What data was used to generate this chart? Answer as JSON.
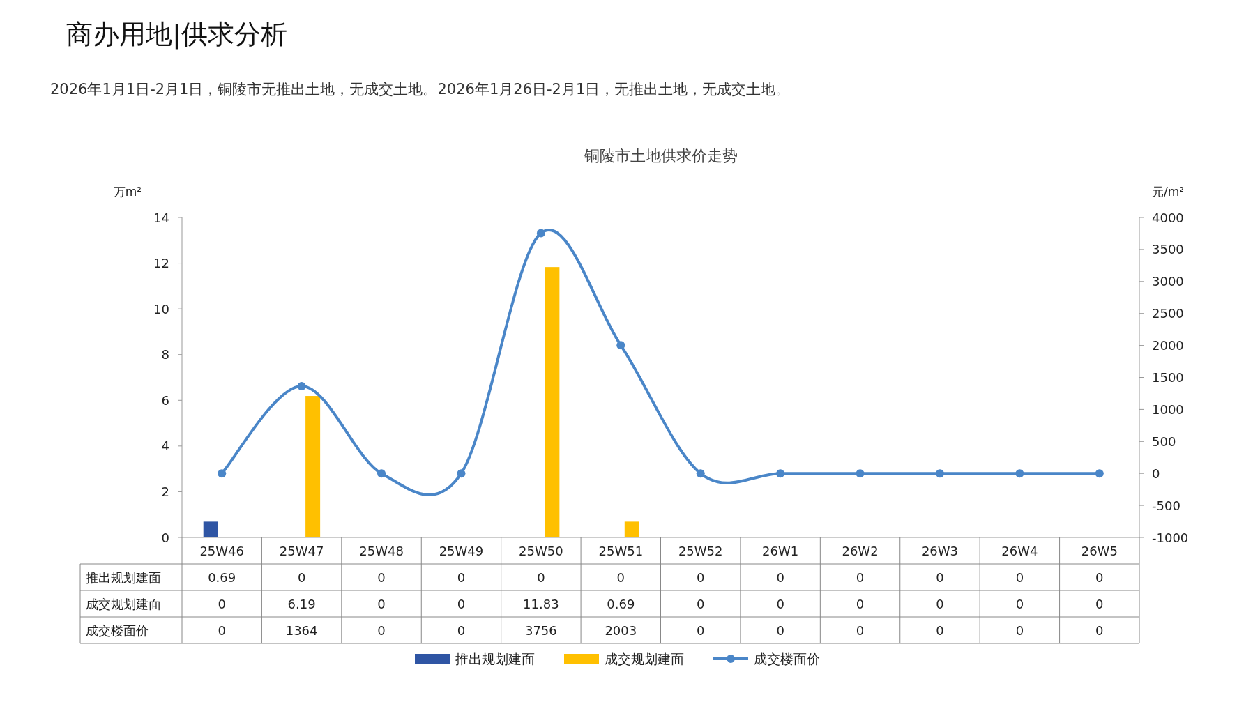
{
  "chart_data": {
    "type": "bar",
    "title": "铜陵市土地供求价走势",
    "annotations": [
      "商办用地|供求分析",
      "2026年1月1日-2月1日，铜陵市无推出土地，无成交土地。2026年1月26日-2月1日，无推出土地，无成交土地。"
    ],
    "ylabel": "万m²",
    "y2label": "元/m²",
    "categories": [
      "25W46",
      "25W47",
      "25W48",
      "25W49",
      "25W50",
      "25W51",
      "25W52",
      "26W1",
      "26W2",
      "26W3",
      "26W4",
      "26W5"
    ],
    "series": [
      {
        "name": "推出规划建面",
        "color": "#2f55a4",
        "values": [
          0.69,
          0,
          0,
          0,
          0,
          0,
          0,
          0,
          0,
          0,
          0,
          0
        ]
      },
      {
        "name": "成交规划建面",
        "color": "#ffc000",
        "values": [
          0,
          6.19,
          0,
          0,
          11.83,
          0.69,
          0,
          0,
          0,
          0,
          0,
          0
        ]
      },
      {
        "name": "成交楼面价",
        "type": "line",
        "axis": "y2",
        "color": "#4a86c8",
        "marker": "circle",
        "values": [
          0,
          1364,
          0,
          0,
          3756,
          2003,
          0,
          0,
          0,
          0,
          0,
          0
        ]
      }
    ],
    "ylim": [
      0,
      14
    ],
    "yticks": [
      0,
      2,
      4,
      6,
      8,
      10,
      12,
      14
    ],
    "y2lim": [
      -1000,
      4000
    ],
    "y2ticks": [
      -1000,
      -500,
      0,
      500,
      1000,
      1500,
      2000,
      2500,
      3000,
      3500,
      4000
    ],
    "data_labels": true,
    "legend": "bottom",
    "grid": false
  }
}
